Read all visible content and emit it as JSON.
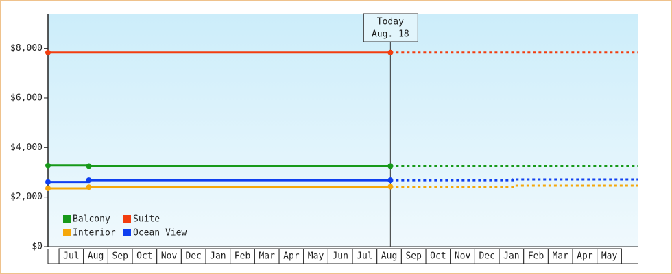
{
  "chart_data": {
    "type": "line",
    "categories": [
      "Jul",
      "Aug",
      "Sep",
      "Oct",
      "Nov",
      "Dec",
      "Jan",
      "Feb",
      "Mar",
      "Apr",
      "May",
      "Jun",
      "Jul",
      "Aug",
      "Sep",
      "Oct",
      "Nov",
      "Dec",
      "Jan",
      "Feb",
      "Mar",
      "Apr",
      "May"
    ],
    "xlim": [
      -0.45,
      23.69
    ],
    "ylim": [
      0,
      9400
    ],
    "yticks": [
      {
        "value": 0,
        "label": "$0"
      },
      {
        "value": 2000,
        "label": "$2,000"
      },
      {
        "value": 4000,
        "label": "$4,000"
      },
      {
        "value": 6000,
        "label": "$6,000"
      },
      {
        "value": 8000,
        "label": "$8,000"
      }
    ],
    "today": {
      "label": "Today",
      "date": "Aug. 18",
      "x": 13.55
    },
    "legend": "lower left",
    "series": [
      {
        "name": "Balcony",
        "color": "#17991a",
        "x": [
          -0.45,
          1.22,
          13.55,
          23.69
        ],
        "values": [
          3270,
          3250,
          3250,
          3250
        ]
      },
      {
        "name": "Suite",
        "color": "#f23d0f",
        "x": [
          -0.45,
          13.55,
          23.69
        ],
        "values": [
          7830,
          7830,
          7830
        ]
      },
      {
        "name": "Interior",
        "color": "#f5a70a",
        "x": [
          -0.45,
          1.22,
          13.55,
          18.56,
          23.69
        ],
        "values": [
          2350,
          2400,
          2420,
          2460,
          2460
        ]
      },
      {
        "name": "Ocean View",
        "color": "#0f3ff0",
        "x": [
          -0.45,
          1.22,
          13.55,
          18.56,
          23.69
        ],
        "values": [
          2610,
          2680,
          2680,
          2710,
          2710
        ]
      }
    ]
  }
}
